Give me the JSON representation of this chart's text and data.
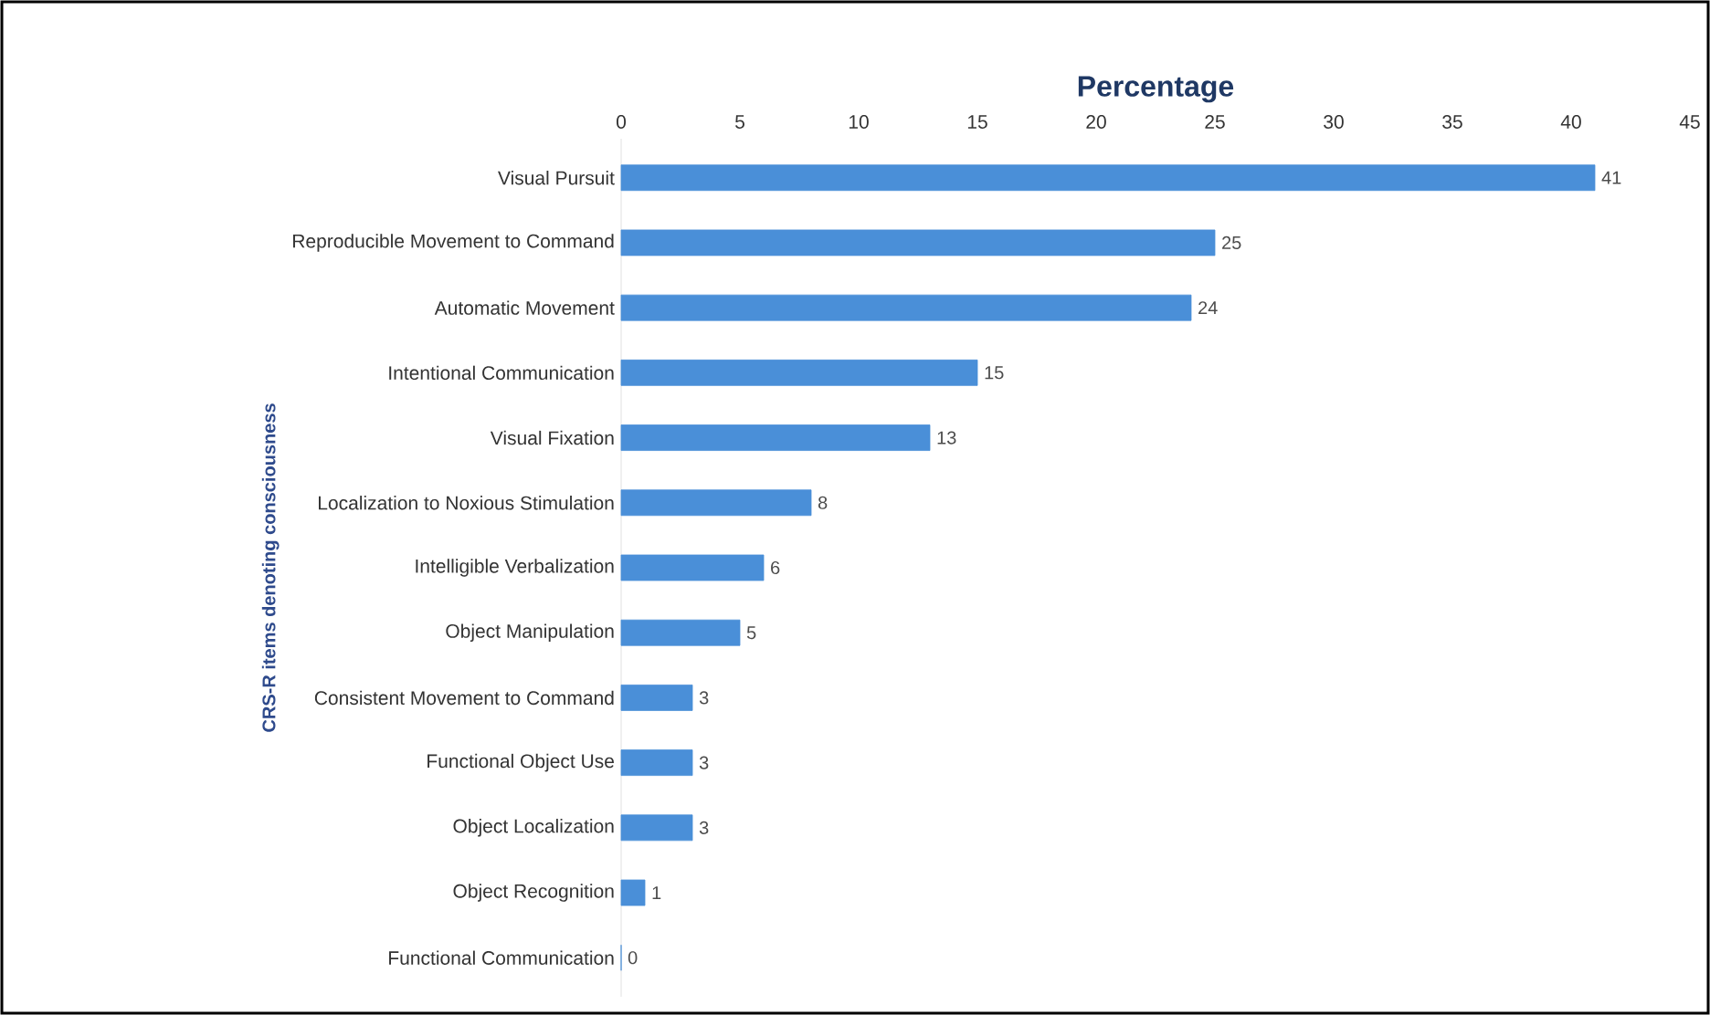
{
  "chart_data": {
    "type": "bar",
    "orientation": "horizontal",
    "xlabel": "Percentage",
    "ylabel": "CRS-R items denoting consciousness",
    "categories": [
      "Visual Pursuit",
      "Reproducible Movement to Command",
      "Automatic Movement",
      "Intentional Communication",
      "Visual Fixation",
      "Localization to Noxious Stimulation",
      "Intelligible Verbalization",
      "Object Manipulation",
      "Consistent Movement to Command",
      "Functional Object Use",
      "Object Localization",
      "Object Recognition",
      "Functional Communication"
    ],
    "values": [
      41,
      25,
      24,
      15,
      13,
      8,
      6,
      5,
      3,
      3,
      3,
      1,
      0
    ],
    "color": "#4a8fd8",
    "xlim": [
      0,
      45
    ],
    "xticks": [
      0,
      5,
      10,
      15,
      20,
      25,
      30,
      35,
      40,
      45
    ],
    "data_labels": true
  }
}
